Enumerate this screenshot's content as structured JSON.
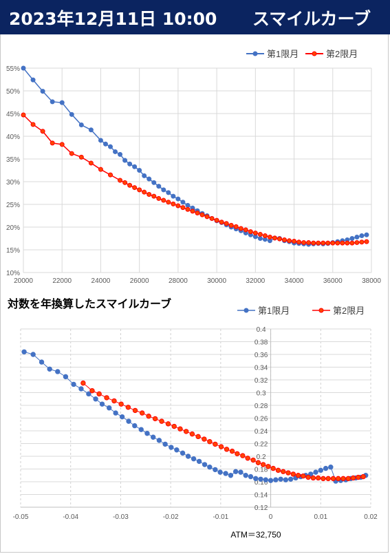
{
  "header": {
    "datetime": "2023年12月11日 10:00",
    "title": "スマイルカーブ"
  },
  "colors": {
    "header_bg": "#0b2460",
    "series1": "#4472C4",
    "series2": "#FF0000",
    "series2_marker": "#FF4500"
  },
  "chart_data": [
    {
      "type": "line",
      "title": "",
      "xlim": [
        20000,
        38000
      ],
      "ylim": [
        0.1,
        0.55
      ],
      "x_ticks": [
        "20000",
        "22000",
        "24000",
        "26000",
        "28000",
        "30000",
        "32000",
        "34000",
        "36000",
        "38000"
      ],
      "y_ticks": [
        "10%",
        "15%",
        "20%",
        "25%",
        "30%",
        "35%",
        "40%",
        "45%",
        "50%",
        "55%"
      ],
      "grid": true,
      "legend_position": "top-right",
      "series": [
        {
          "name": "第1限月",
          "x": [
            20000,
            20500,
            21000,
            21500,
            22000,
            22500,
            23000,
            23500,
            24000,
            24250,
            24500,
            24750,
            25000,
            25250,
            25500,
            25750,
            26000,
            26250,
            26500,
            26750,
            27000,
            27250,
            27500,
            27750,
            28000,
            28250,
            28500,
            28750,
            29000,
            29250,
            29500,
            29750,
            30000,
            30250,
            30500,
            30750,
            31000,
            31250,
            31500,
            31750,
            32000,
            32250,
            32500,
            32750,
            33000,
            33250,
            33500,
            33750,
            34000,
            34250,
            34500,
            34750,
            35000,
            35250,
            35500,
            35750,
            36000,
            36250,
            36500,
            36750,
            37000,
            37250,
            37500,
            37750
          ],
          "y": [
            0.55,
            0.524,
            0.499,
            0.476,
            0.474,
            0.448,
            0.425,
            0.414,
            0.391,
            0.383,
            0.377,
            0.366,
            0.36,
            0.347,
            0.339,
            0.333,
            0.325,
            0.313,
            0.306,
            0.298,
            0.29,
            0.282,
            0.276,
            0.268,
            0.262,
            0.255,
            0.248,
            0.242,
            0.236,
            0.23,
            0.225,
            0.219,
            0.214,
            0.21,
            0.205,
            0.2,
            0.196,
            0.192,
            0.187,
            0.183,
            0.179,
            0.175,
            0.173,
            0.17,
            0.176,
            0.175,
            0.17,
            0.168,
            0.165,
            0.164,
            0.163,
            0.162,
            0.163,
            0.164,
            0.163,
            0.164,
            0.166,
            0.168,
            0.17,
            0.172,
            0.175,
            0.178,
            0.181,
            0.183
          ]
        },
        {
          "name": "第2限月",
          "x": [
            20000,
            20500,
            21000,
            21500,
            22000,
            22500,
            23000,
            23500,
            24000,
            24500,
            25000,
            25250,
            25500,
            25750,
            26000,
            26250,
            26500,
            26750,
            27000,
            27250,
            27500,
            27750,
            28000,
            28250,
            28500,
            28750,
            29000,
            29250,
            29500,
            29750,
            30000,
            30250,
            30500,
            30750,
            31000,
            31250,
            31500,
            31750,
            32000,
            32250,
            32500,
            32750,
            33000,
            33250,
            33500,
            33750,
            34000,
            34250,
            34500,
            34750,
            35000,
            35250,
            35500,
            35750,
            36000,
            36250,
            36500,
            36750,
            37000,
            37250,
            37500,
            37750
          ],
          "y": [
            0.447,
            0.426,
            0.411,
            0.385,
            0.382,
            0.362,
            0.354,
            0.341,
            0.327,
            0.315,
            0.303,
            0.298,
            0.292,
            0.287,
            0.282,
            0.277,
            0.272,
            0.268,
            0.263,
            0.259,
            0.255,
            0.251,
            0.247,
            0.243,
            0.239,
            0.235,
            0.231,
            0.227,
            0.223,
            0.219,
            0.215,
            0.211,
            0.208,
            0.204,
            0.201,
            0.197,
            0.194,
            0.19,
            0.187,
            0.184,
            0.181,
            0.178,
            0.176,
            0.174,
            0.172,
            0.17,
            0.169,
            0.167,
            0.166,
            0.166,
            0.165,
            0.165,
            0.165,
            0.165,
            0.165,
            0.165,
            0.165,
            0.165,
            0.165,
            0.166,
            0.167,
            0.168
          ]
        }
      ]
    },
    {
      "type": "line",
      "title": "対数を年換算したスマイルカーブ",
      "xlim": [
        -0.05,
        0.02
      ],
      "ylim": [
        0.12,
        0.4
      ],
      "x_ticks": [
        "-0.05",
        "-0.04",
        "-0.03",
        "-0.02",
        "-0.01",
        "0",
        "0.01",
        "0.02"
      ],
      "y_ticks": [
        "0.12",
        "0.14",
        "0.16",
        "0.18",
        "0.2",
        "0.22",
        "0.24",
        "0.26",
        "0.28",
        "0.3",
        "0.32",
        "0.34",
        "0.36",
        "0.38",
        "0.4"
      ],
      "grid": true,
      "legend_position": "top-right",
      "annotation": "ATM＝32,750",
      "series": [
        {
          "name": "第1限月",
          "x": [
            -0.0493,
            -0.0475,
            -0.0458,
            -0.0442,
            -0.0426,
            -0.041,
            -0.0394,
            -0.0379,
            -0.0364,
            -0.035,
            -0.0337,
            -0.0323,
            -0.031,
            -0.0297,
            -0.0284,
            -0.0272,
            -0.0259,
            -0.0247,
            -0.0235,
            -0.0223,
            -0.0211,
            -0.0199,
            -0.0188,
            -0.0176,
            -0.0165,
            -0.0154,
            -0.0143,
            -0.0132,
            -0.0122,
            -0.0111,
            -0.0101,
            -0.009,
            -0.008,
            -0.007,
            -0.006,
            -0.005,
            -0.004,
            -0.003,
            -0.002,
            -0.001,
            0.0,
            0.001,
            0.002,
            0.003,
            0.004,
            0.005,
            0.006,
            0.007,
            0.008,
            0.009,
            0.01,
            0.011,
            0.012,
            0.013,
            0.014,
            0.015,
            0.016,
            0.017,
            0.018,
            0.019
          ],
          "y": [
            0.364,
            0.36,
            0.348,
            0.337,
            0.333,
            0.325,
            0.313,
            0.306,
            0.298,
            0.29,
            0.282,
            0.276,
            0.268,
            0.262,
            0.255,
            0.248,
            0.242,
            0.236,
            0.23,
            0.225,
            0.219,
            0.214,
            0.21,
            0.205,
            0.2,
            0.196,
            0.192,
            0.187,
            0.183,
            0.179,
            0.175,
            0.173,
            0.17,
            0.176,
            0.175,
            0.17,
            0.168,
            0.165,
            0.164,
            0.163,
            0.162,
            0.163,
            0.164,
            0.163,
            0.164,
            0.166,
            0.168,
            0.17,
            0.172,
            0.175,
            0.178,
            0.181,
            0.183,
            0.161,
            0.162,
            0.163,
            0.165,
            0.166,
            0.167,
            0.17
          ]
        },
        {
          "name": "第2限月",
          "x": [
            -0.0375,
            -0.0357,
            -0.0343,
            -0.0328,
            -0.0313,
            -0.0299,
            -0.0285,
            -0.0271,
            -0.0257,
            -0.0244,
            -0.0231,
            -0.0218,
            -0.0205,
            -0.0193,
            -0.0181,
            -0.0169,
            -0.0157,
            -0.0145,
            -0.0133,
            -0.0122,
            -0.0111,
            -0.0099,
            -0.0088,
            -0.0077,
            -0.0067,
            -0.0056,
            -0.0046,
            -0.0035,
            -0.0025,
            -0.0015,
            -0.0005,
            0.0005,
            0.0015,
            0.0025,
            0.0035,
            0.0045,
            0.0055,
            0.0065,
            0.0075,
            0.0085,
            0.0095,
            0.0105,
            0.0115,
            0.0125,
            0.0135,
            0.0145,
            0.0155,
            0.0165,
            0.0175,
            0.0185
          ],
          "y": [
            0.315,
            0.303,
            0.298,
            0.292,
            0.287,
            0.282,
            0.277,
            0.272,
            0.268,
            0.263,
            0.259,
            0.255,
            0.251,
            0.247,
            0.243,
            0.239,
            0.235,
            0.231,
            0.227,
            0.223,
            0.219,
            0.215,
            0.211,
            0.208,
            0.204,
            0.201,
            0.197,
            0.194,
            0.19,
            0.187,
            0.184,
            0.181,
            0.178,
            0.176,
            0.174,
            0.172,
            0.17,
            0.169,
            0.167,
            0.166,
            0.166,
            0.165,
            0.165,
            0.165,
            0.165,
            0.165,
            0.165,
            0.166,
            0.167,
            0.168
          ]
        }
      ]
    }
  ]
}
